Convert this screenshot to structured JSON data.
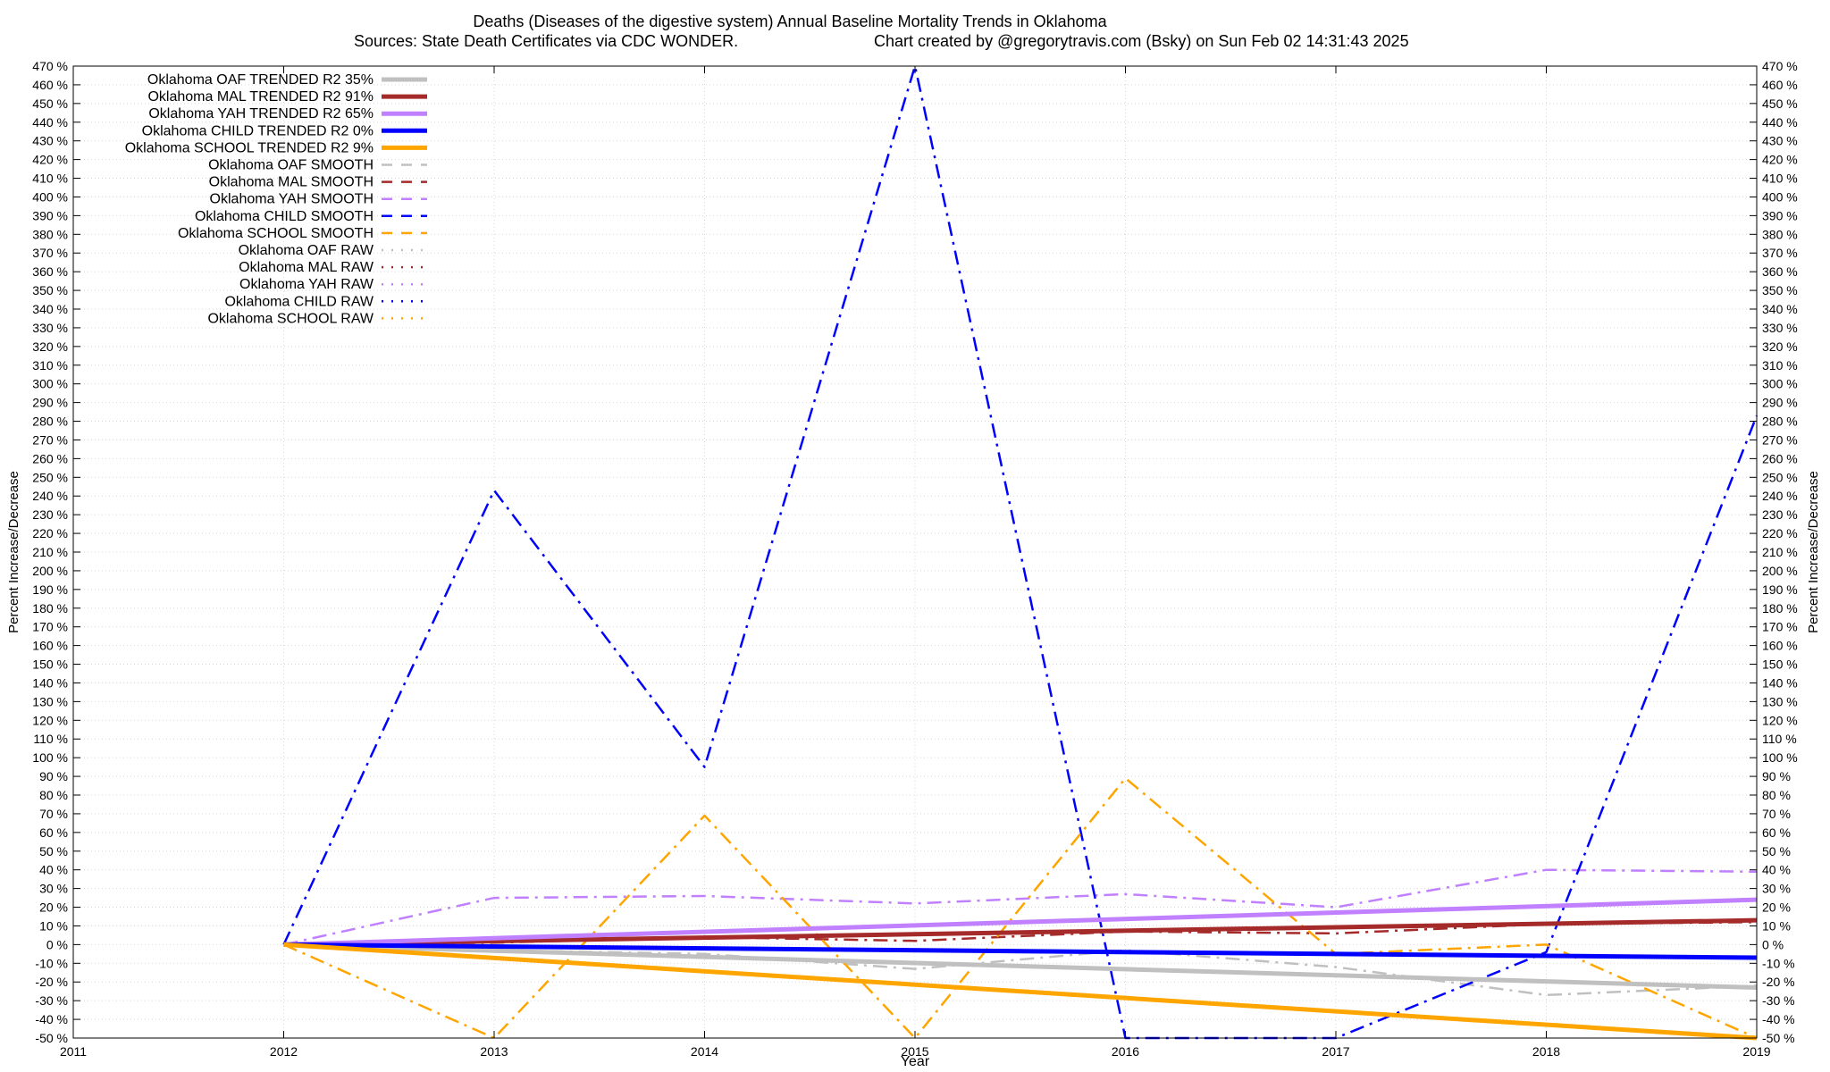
{
  "chart_data": {
    "type": "line",
    "title": "Deaths (Diseases of the digestive system)  Annual Baseline Mortality Trends in Oklahoma",
    "subtitle_left": "Sources: State Death Certificates via CDC WONDER.",
    "subtitle_right": "Chart created by @gregorytravis.com (Bsky) on Sun Feb 02 14:31:43 2025",
    "xlabel": "Year",
    "ylabel": "Percent Increase/Decrease",
    "y2label": "Percent Increase/Decrease",
    "xlim": [
      2011,
      2019
    ],
    "ylim": [
      -50,
      470
    ],
    "xticks": [
      "2011",
      "2012",
      "2013",
      "2014",
      "2015",
      "2016",
      "2017",
      "2018",
      "2019"
    ],
    "ytick_step": 10,
    "ytick_suffix": " %",
    "grid": true,
    "legend_position": "top-left",
    "series": [
      {
        "name": "Oklahoma OAF TRENDED R2  35%",
        "kind": "trend",
        "color": "#c0c0c0",
        "x": [
          2012,
          2019
        ],
        "y": [
          0,
          -23
        ]
      },
      {
        "name": "Oklahoma MAL TRENDED R2  91%",
        "kind": "trend",
        "color": "#a52a2a",
        "x": [
          2012,
          2019
        ],
        "y": [
          0,
          13
        ]
      },
      {
        "name": "Oklahoma YAH TRENDED R2  65%",
        "kind": "trend",
        "color": "#c080ff",
        "x": [
          2012,
          2019
        ],
        "y": [
          0,
          24
        ]
      },
      {
        "name": "Oklahoma CHILD TRENDED R2   0%",
        "kind": "trend",
        "color": "#0000ff",
        "x": [
          2012,
          2019
        ],
        "y": [
          0,
          -7
        ]
      },
      {
        "name": "Oklahoma SCHOOL TRENDED R2   9%",
        "kind": "trend",
        "color": "#ffa500",
        "x": [
          2012,
          2019
        ],
        "y": [
          0,
          -50
        ]
      },
      {
        "name": "Oklahoma OAF SMOOTH",
        "kind": "smooth",
        "color": "#c0c0c0",
        "x": [
          2012,
          2013,
          2014,
          2015,
          2016,
          2017,
          2018,
          2019
        ],
        "y": [
          0,
          -3,
          -5,
          -13,
          -3,
          -12,
          -27,
          -22
        ]
      },
      {
        "name": "Oklahoma MAL SMOOTH",
        "kind": "smooth",
        "color": "#a52a2a",
        "x": [
          2012,
          2013,
          2014,
          2015,
          2016,
          2017,
          2018,
          2019
        ],
        "y": [
          0,
          1,
          4,
          2,
          7,
          6,
          11,
          12
        ]
      },
      {
        "name": "Oklahoma YAH SMOOTH",
        "kind": "smooth",
        "color": "#c080ff",
        "x": [
          2012,
          2013,
          2014,
          2015,
          2016,
          2017,
          2018,
          2019
        ],
        "y": [
          0,
          25,
          26,
          22,
          27,
          20,
          40,
          39
        ]
      },
      {
        "name": "Oklahoma CHILD SMOOTH",
        "kind": "smooth",
        "color": "#0000ff",
        "x": [
          2012,
          2013,
          2014,
          2015,
          2016,
          2017,
          2018,
          2019
        ],
        "y": [
          0,
          243,
          95,
          470,
          -50,
          -50,
          -4,
          283
        ]
      },
      {
        "name": "Oklahoma SCHOOL SMOOTH",
        "kind": "smooth",
        "color": "#ffa500",
        "x": [
          2012,
          2013,
          2014,
          2015,
          2016,
          2017,
          2018,
          2019
        ],
        "y": [
          0,
          -50,
          69,
          -50,
          89,
          -5,
          0,
          -50
        ]
      },
      {
        "name": "Oklahoma OAF RAW",
        "kind": "raw",
        "color": "#c0c0c0",
        "x": [],
        "y": []
      },
      {
        "name": "Oklahoma MAL RAW",
        "kind": "raw",
        "color": "#a52a2a",
        "x": [],
        "y": []
      },
      {
        "name": "Oklahoma YAH RAW",
        "kind": "raw",
        "color": "#c080ff",
        "x": [],
        "y": []
      },
      {
        "name": "Oklahoma CHILD RAW",
        "kind": "raw",
        "color": "#0000ff",
        "x": [],
        "y": []
      },
      {
        "name": "Oklahoma SCHOOL RAW",
        "kind": "raw",
        "color": "#ffa500",
        "x": [],
        "y": []
      }
    ]
  }
}
